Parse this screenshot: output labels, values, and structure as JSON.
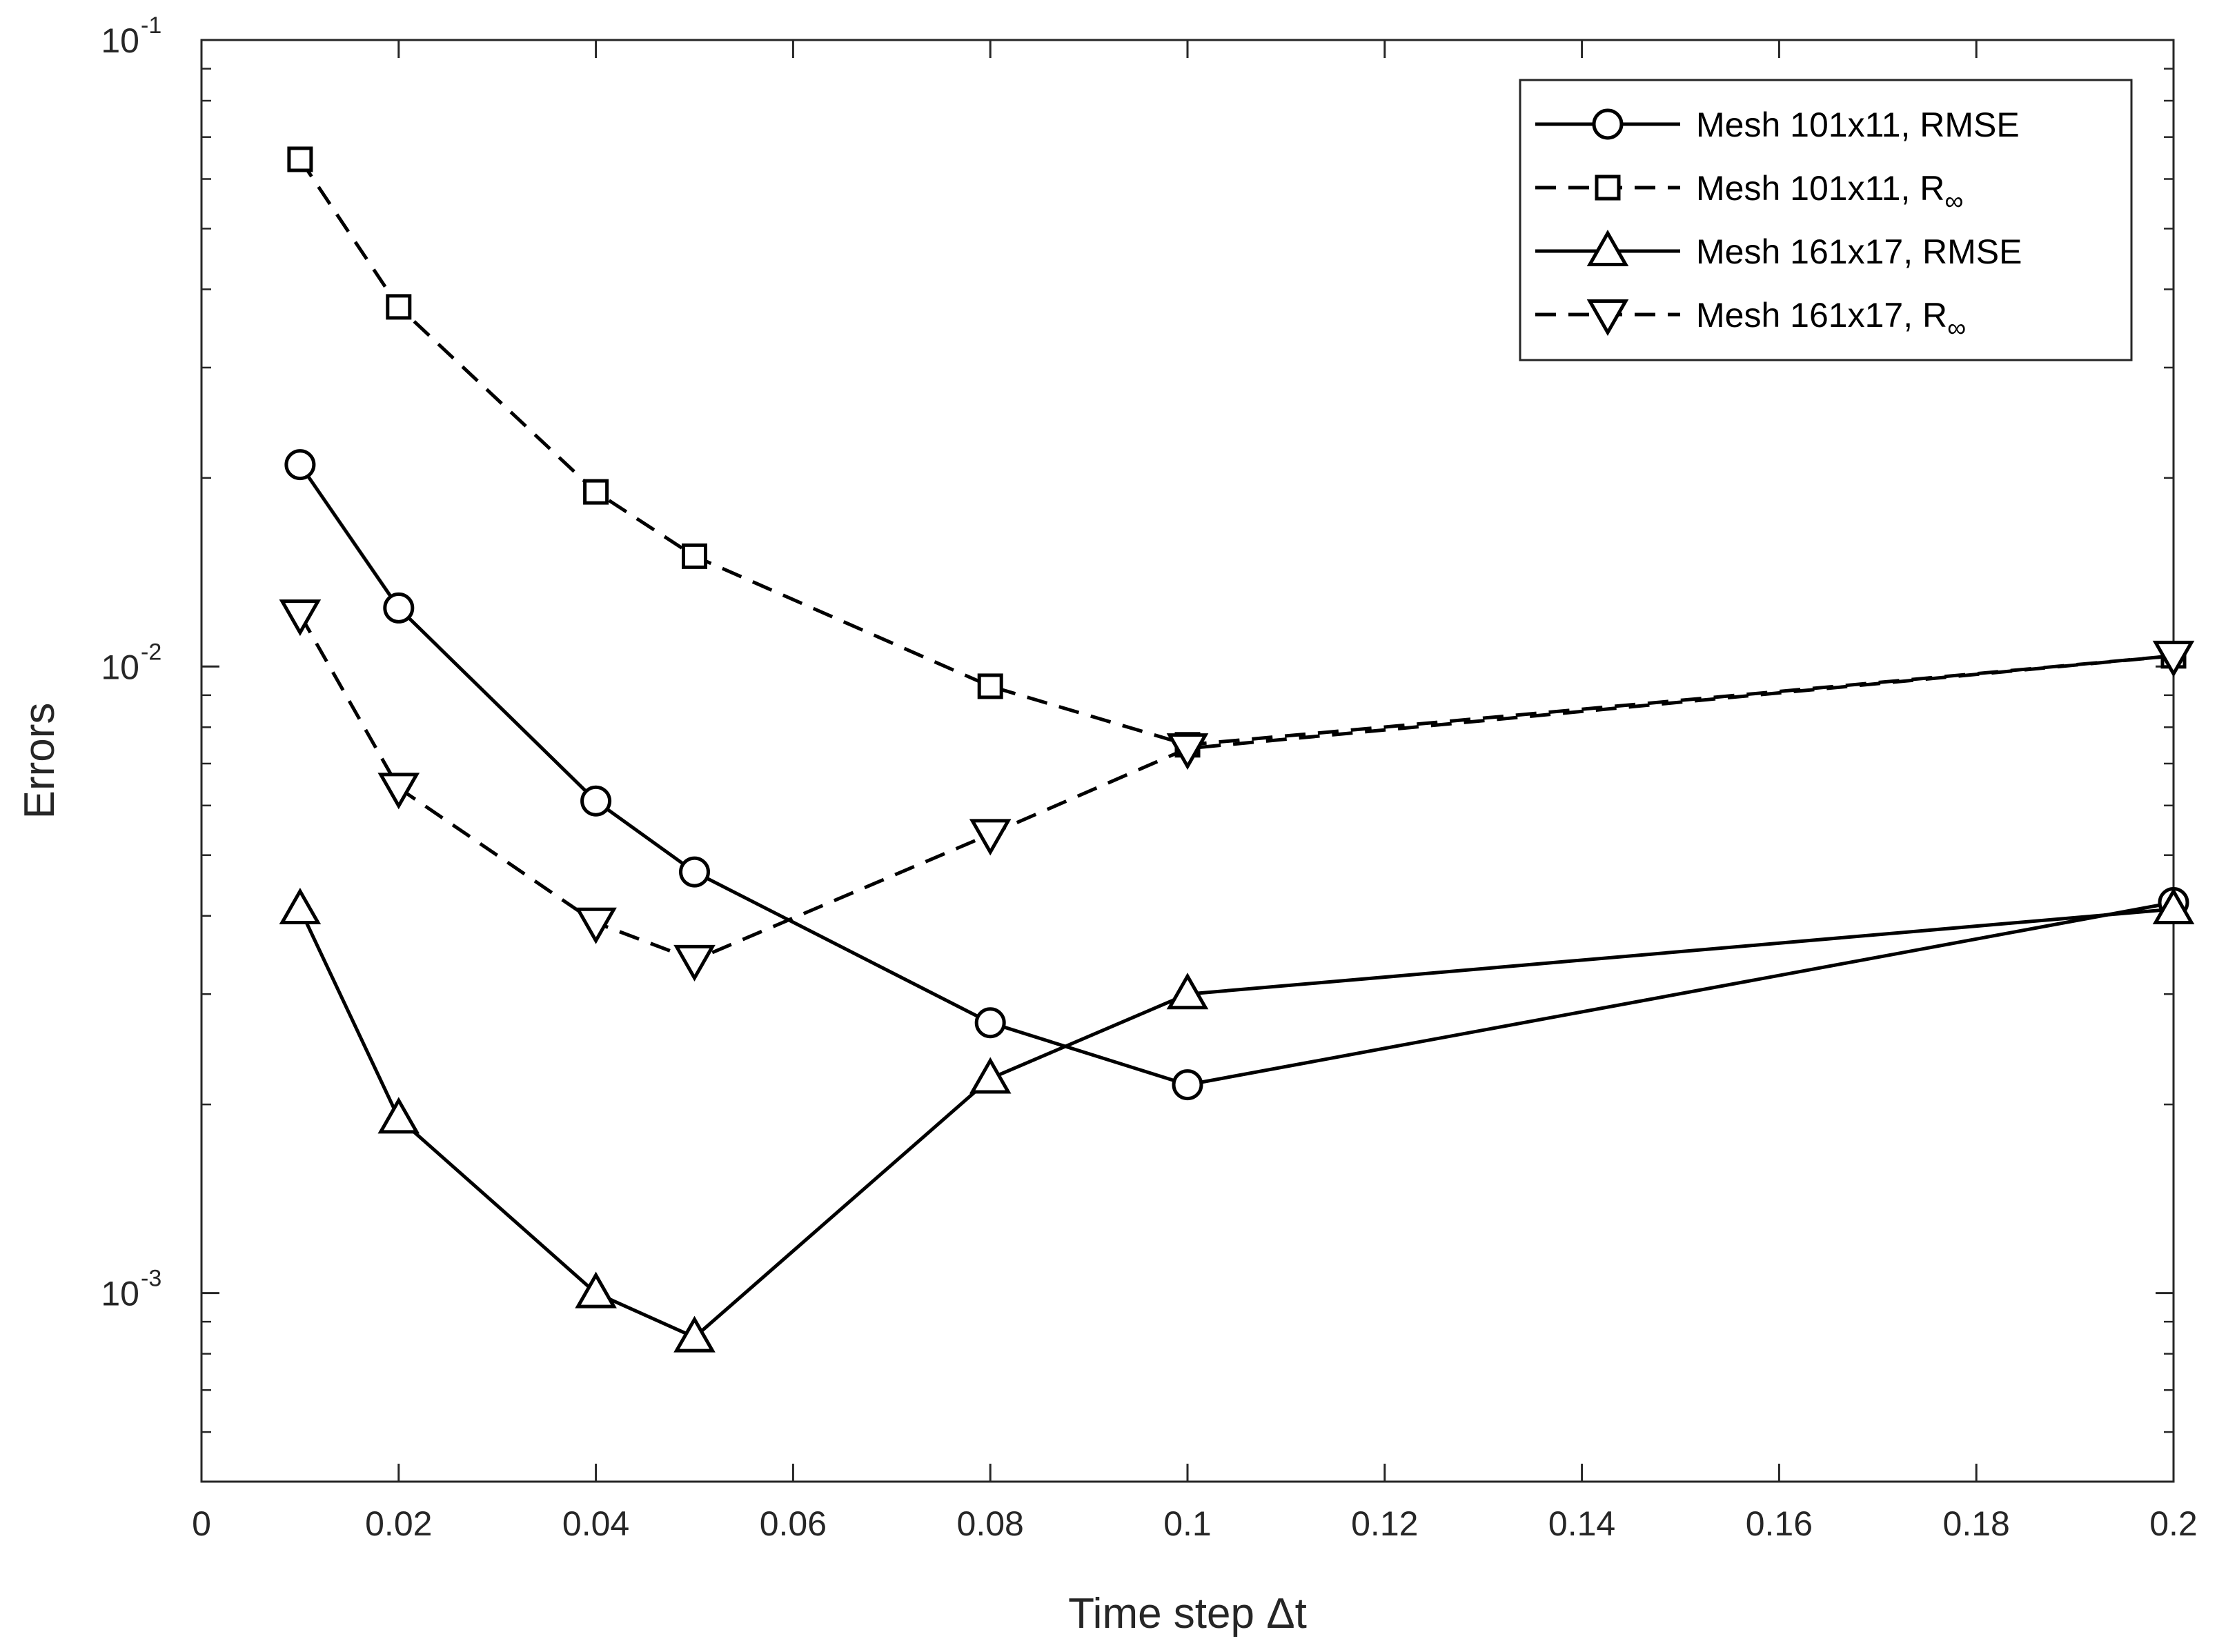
{
  "chart_data": {
    "type": "line",
    "title": "",
    "xlabel": "Time step Δt",
    "ylabel": "Errors",
    "xlim": [
      0,
      0.2
    ],
    "ylim": [
      0.0005,
      0.1
    ],
    "yscale": "log",
    "grid": false,
    "legend_position": "top-right",
    "x_ticks": [
      0,
      0.02,
      0.04,
      0.06,
      0.08,
      0.1,
      0.12,
      0.14,
      0.16,
      0.18,
      0.2
    ],
    "x_tick_labels": [
      "0",
      "0.02",
      "0.04",
      "0.06",
      "0.08",
      "0.1",
      "0.12",
      "0.14",
      "0.16",
      "0.18",
      "0.2"
    ],
    "y_major_ticks": [
      {
        "value": 0.001,
        "base": "10",
        "exponent": "-3"
      },
      {
        "value": 0.01,
        "base": "10",
        "exponent": "-2"
      },
      {
        "value": 0.1,
        "base": "10",
        "exponent": "-1"
      }
    ],
    "x": [
      0.01,
      0.02,
      0.04,
      0.05,
      0.08,
      0.1,
      0.2
    ],
    "series": [
      {
        "name": "Mesh 101x11, RMSE",
        "legend_main": "Mesh 101x11, RMSE",
        "legend_sub": "",
        "line_style": "solid",
        "marker": "circle",
        "color": "#000000",
        "values": [
          0.021,
          0.0124,
          0.0061,
          0.0047,
          0.0027,
          0.00215,
          0.0042
        ]
      },
      {
        "name": "Mesh 101x11, R∞",
        "legend_main": "Mesh 101x11, R",
        "legend_sub": "∞",
        "line_style": "dashed",
        "marker": "square",
        "color": "#000000",
        "values": [
          0.0645,
          0.0375,
          0.019,
          0.015,
          0.0093,
          0.0075,
          0.0104
        ]
      },
      {
        "name": "Mesh 161x17, RMSE",
        "legend_main": "Mesh 161x17, RMSE",
        "legend_sub": "",
        "line_style": "solid",
        "marker": "triangle-up",
        "color": "#000000",
        "values": [
          0.0041,
          0.0019,
          0.001,
          0.00085,
          0.0022,
          0.003,
          0.0041
        ]
      },
      {
        "name": "Mesh 161x17, R∞",
        "legend_main": "Mesh 161x17, R",
        "legend_sub": "∞",
        "line_style": "dashed",
        "marker": "triangle-down",
        "color": "#000000",
        "values": [
          0.0121,
          0.0064,
          0.0039,
          0.0034,
          0.0054,
          0.0074,
          0.0104
        ]
      }
    ]
  }
}
